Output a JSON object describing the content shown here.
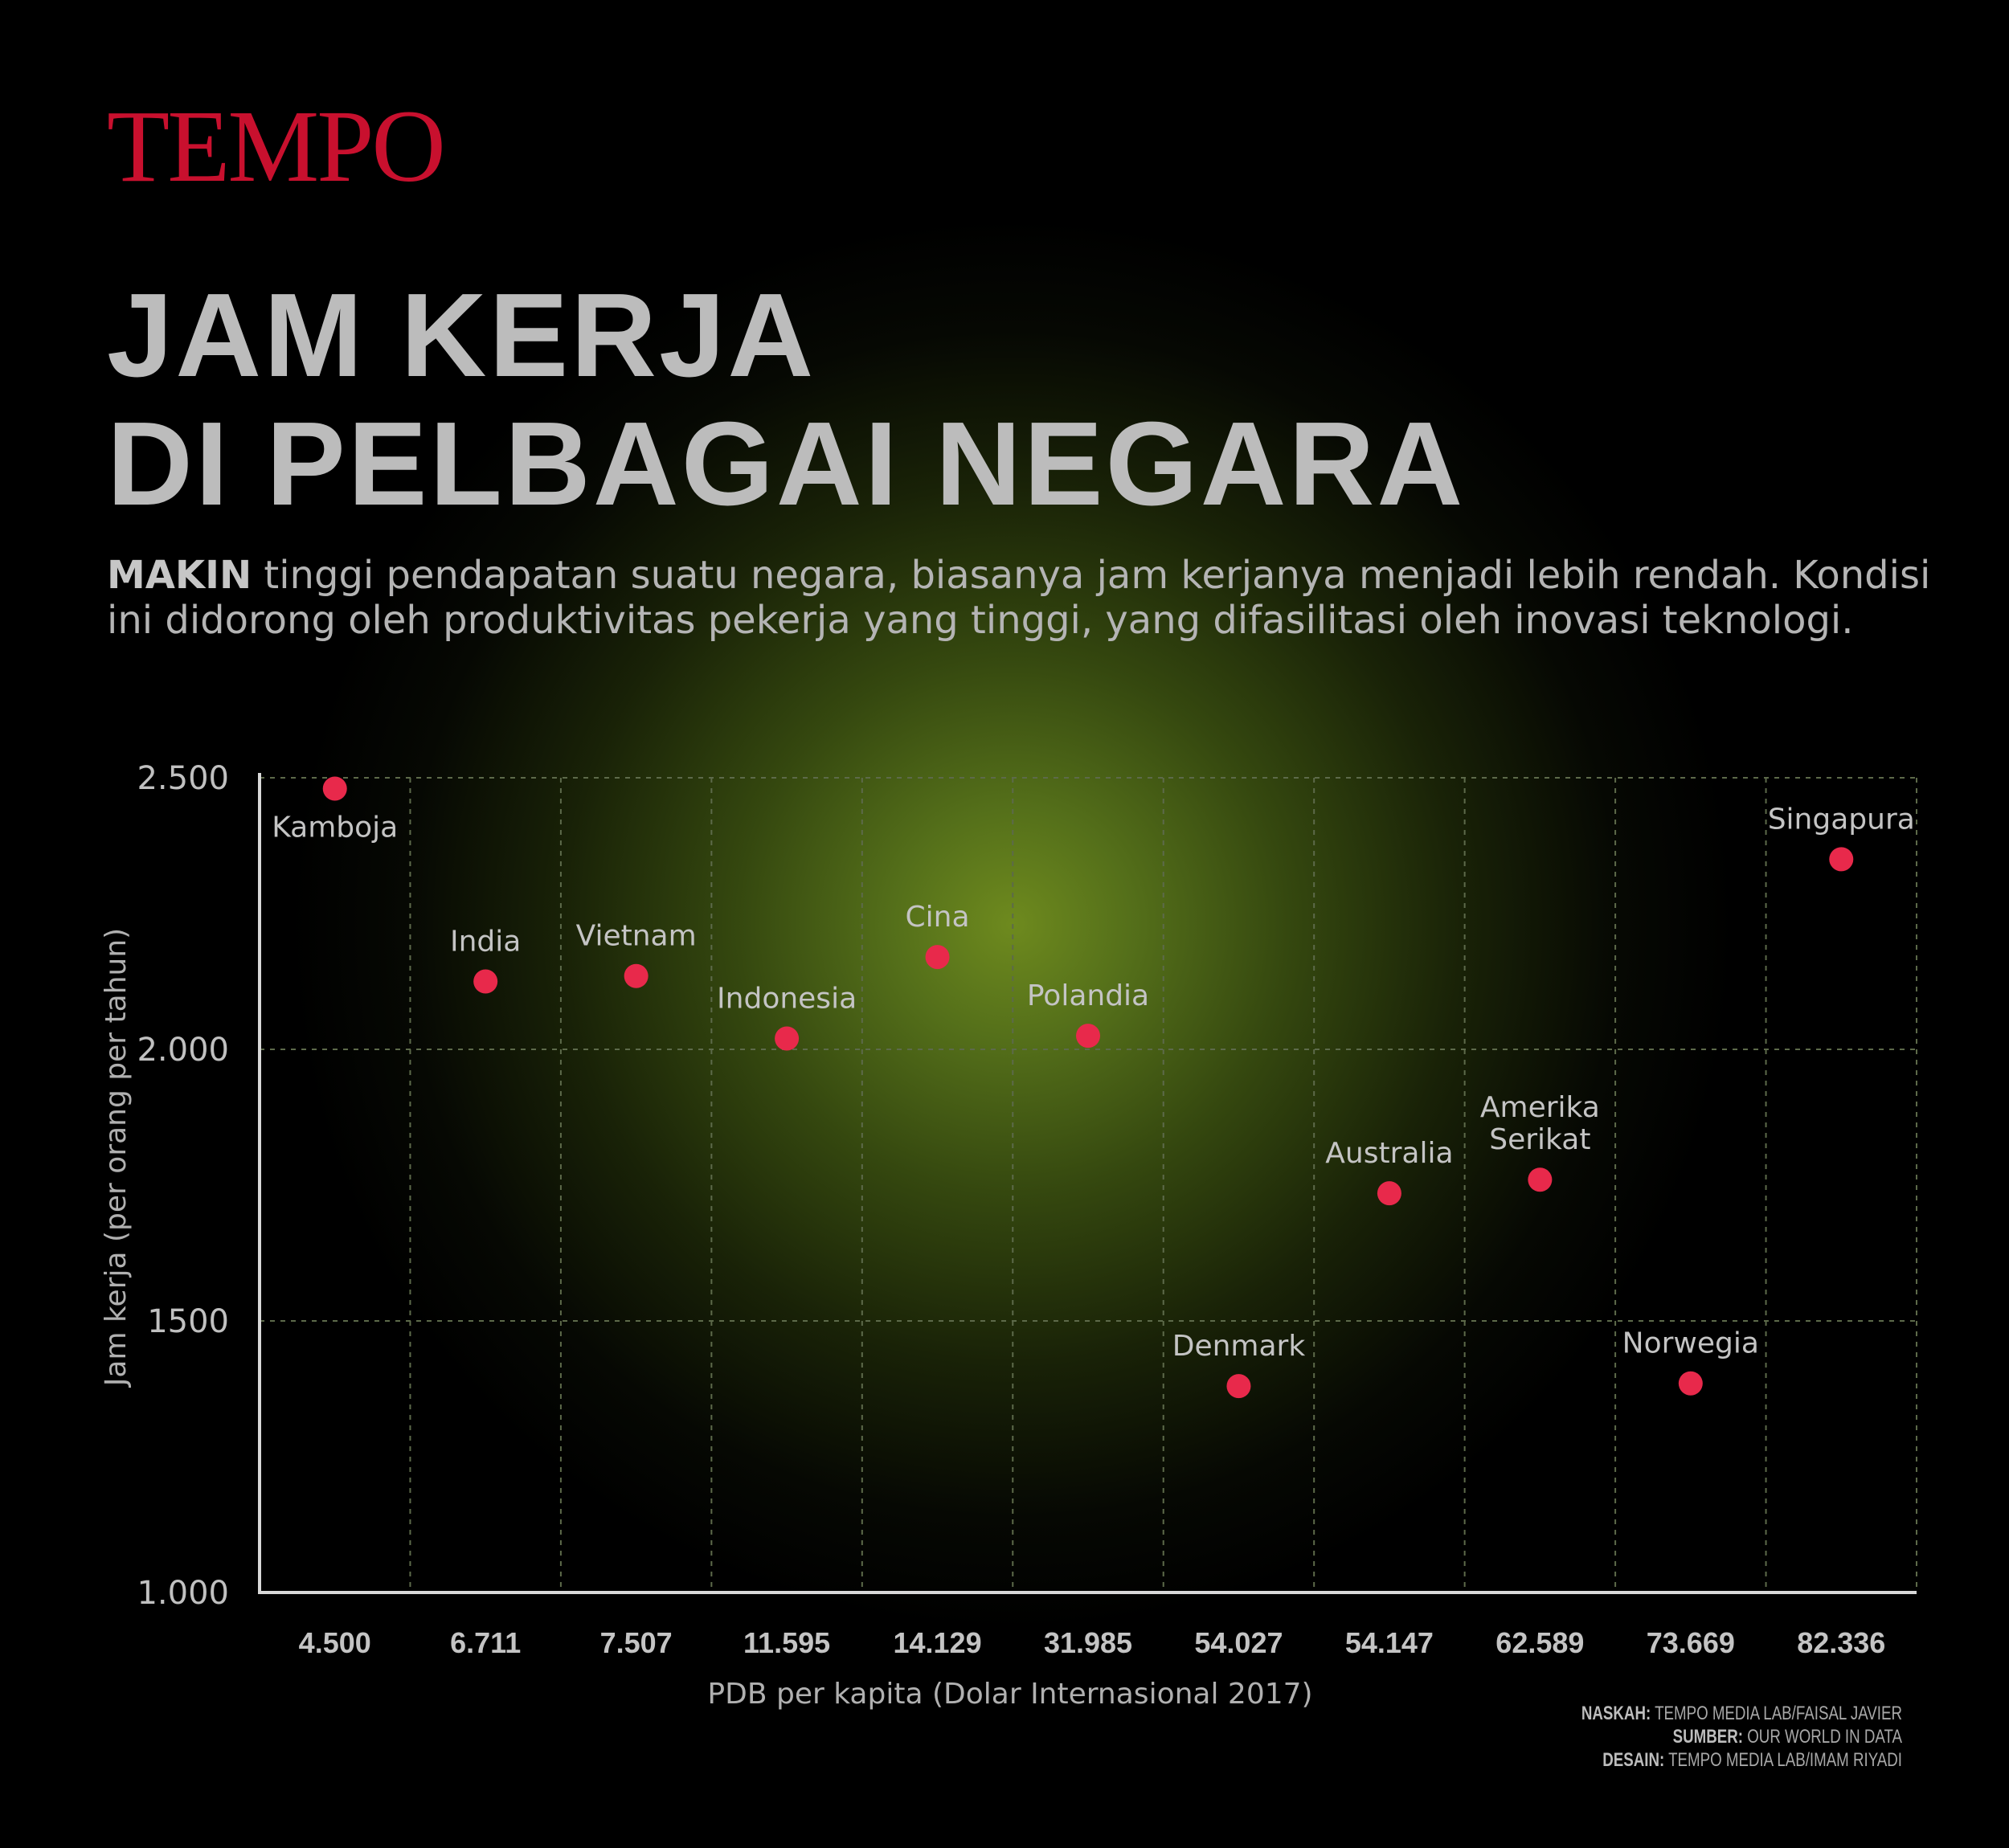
{
  "brand": {
    "logo_text": "TEMPO",
    "logo_color": "#c8102e"
  },
  "title": {
    "line1": "JAM KERJA",
    "line2": "DI PELBAGAI NEGARA"
  },
  "intro": {
    "lead": "MAKIN",
    "text": " tinggi pendapatan suatu negara, biasanya jam kerjanya menjadi lebih rendah. Kondisi ini didorong oleh produktivitas pekerja yang tinggi, yang difasilitasi oleh inovasi teknologi."
  },
  "chart_data": {
    "type": "scatter",
    "xlabel": "PDB per kapita (Dolar Internasional 2017)",
    "ylabel": "Jam kerja (per orang per tahun)",
    "ylim": [
      1000,
      2500
    ],
    "yticks": [
      {
        "value": 1000,
        "label": "1.000"
      },
      {
        "value": 1500,
        "label": "1500"
      },
      {
        "value": 2000,
        "label": "2.000"
      },
      {
        "value": 2500,
        "label": "2.500"
      }
    ],
    "x_categories": [
      "4.500",
      "6.711",
      "7.507",
      "11.595",
      "14.129",
      "31.985",
      "54.027",
      "54.147",
      "62.589",
      "73.669",
      "82.336"
    ],
    "grid": true,
    "marker_color": "#e8294b",
    "points": [
      {
        "country": "Kamboja",
        "x": "4.500",
        "y": 2480,
        "label_pos": "below"
      },
      {
        "country": "India",
        "x": "6.711",
        "y": 2125,
        "label_pos": "above"
      },
      {
        "country": "Vietnam",
        "x": "7.507",
        "y": 2135,
        "label_pos": "above"
      },
      {
        "country": "Indonesia",
        "x": "11.595",
        "y": 2020,
        "label_pos": "above"
      },
      {
        "country": "Cina",
        "x": "14.129",
        "y": 2170,
        "label_pos": "above"
      },
      {
        "country": "Polandia",
        "x": "31.985",
        "y": 2025,
        "label_pos": "above"
      },
      {
        "country": "Denmark",
        "x": "54.027",
        "y": 1380,
        "label_pos": "above"
      },
      {
        "country": "Australia",
        "x": "54.147",
        "y": 1735,
        "label_pos": "above"
      },
      {
        "country": "Amerika Serikat",
        "x": "62.589",
        "y": 1760,
        "label_pos": "above"
      },
      {
        "country": "Norwegia",
        "x": "73.669",
        "y": 1385,
        "label_pos": "above"
      },
      {
        "country": "Singapura",
        "x": "82.336",
        "y": 2350,
        "label_pos": "above"
      }
    ]
  },
  "credits": [
    {
      "key": "NASKAH:",
      "value": "TEMPO MEDIA LAB/FAISAL JAVIER"
    },
    {
      "key": "SUMBER:",
      "value": "OUR WORLD IN DATA"
    },
    {
      "key": "DESAIN:",
      "value": "TEMPO MEDIA LAB/IMAM RIYADI"
    }
  ]
}
